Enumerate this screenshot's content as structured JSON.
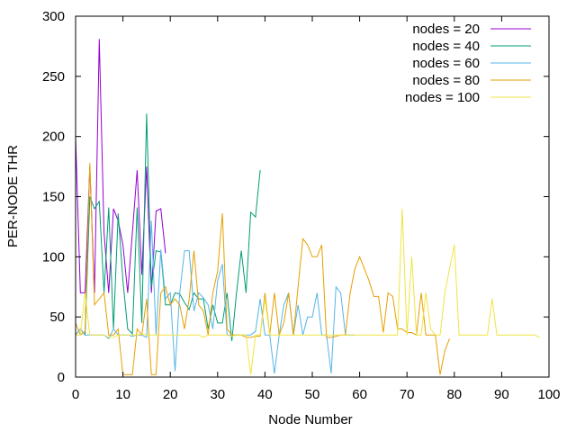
{
  "chart_data": {
    "type": "line",
    "xlabel": "Node Number",
    "ylabel": "PER-NODE THR",
    "xlim": [
      0,
      100
    ],
    "ylim": [
      0,
      300
    ],
    "xticks": [
      "0",
      "10",
      "20",
      "30",
      "40",
      "50",
      "60",
      "70",
      "80",
      "90",
      "100"
    ],
    "yticks": [
      "0",
      "50",
      "100",
      "150",
      "200",
      "250",
      "300"
    ],
    "grid": false,
    "legend_position": "top-right",
    "series": [
      {
        "name": "nodes = 20",
        "color": "#9400d3",
        "x": [
          0,
          1,
          2,
          3,
          4,
          5,
          6,
          7,
          8,
          9,
          10,
          11,
          12,
          13,
          14,
          15,
          16,
          17,
          18,
          19
        ],
        "y": [
          200,
          70,
          70,
          175,
          70,
          281,
          120,
          70,
          140,
          130,
          110,
          70,
          120,
          172,
          85,
          175,
          70,
          138,
          140,
          103
        ]
      },
      {
        "name": "nodes = 40",
        "color": "#009e73",
        "x": [
          0,
          1,
          2,
          3,
          4,
          5,
          6,
          7,
          8,
          9,
          10,
          11,
          12,
          13,
          14,
          15,
          16,
          17,
          18,
          19,
          20,
          21,
          22,
          23,
          24,
          25,
          26,
          27,
          28,
          29,
          30,
          31,
          32,
          33,
          34,
          35,
          36,
          37,
          38,
          39
        ],
        "y": [
          35,
          40,
          35,
          150,
          140,
          146,
          70,
          141,
          40,
          136,
          80,
          40,
          36,
          141,
          45,
          219,
          75,
          105,
          104,
          60,
          60,
          70,
          69,
          62,
          56,
          70,
          65,
          65,
          40,
          60,
          45,
          45,
          70,
          30,
          70,
          105,
          70,
          137,
          133,
          172
        ]
      },
      {
        "name": "nodes = 60",
        "color": "#56b4e9",
        "x": [
          0,
          1,
          2,
          3,
          4,
          5,
          6,
          7,
          8,
          9,
          10,
          11,
          12,
          13,
          14,
          15,
          16,
          17,
          18,
          19,
          20,
          21,
          22,
          23,
          24,
          25,
          26,
          27,
          28,
          29,
          30,
          31,
          32,
          33,
          34,
          35,
          36,
          37,
          38,
          39,
          40,
          41,
          42,
          43,
          44,
          45,
          46,
          47,
          48,
          49,
          50,
          51,
          52,
          53,
          54,
          55,
          56,
          57,
          58,
          59
        ],
        "y": [
          35,
          40,
          35,
          35,
          35,
          35,
          35,
          32,
          40,
          35,
          35,
          35,
          34,
          35,
          35,
          33,
          130,
          35,
          106,
          65,
          70,
          5,
          70,
          105,
          105,
          55,
          70,
          66,
          60,
          40,
          80,
          94,
          35,
          35,
          35,
          35,
          35,
          35,
          38,
          65,
          35,
          35,
          3,
          35,
          60,
          70,
          35,
          60,
          35,
          50,
          50,
          70,
          35,
          35,
          3,
          75,
          70,
          35,
          35,
          35
        ]
      },
      {
        "name": "nodes = 80",
        "color": "#e69f00",
        "x": [
          0,
          1,
          2,
          3,
          4,
          5,
          6,
          7,
          8,
          9,
          10,
          11,
          12,
          13,
          14,
          15,
          16,
          17,
          18,
          19,
          20,
          21,
          22,
          23,
          24,
          25,
          26,
          27,
          28,
          29,
          30,
          31,
          32,
          33,
          34,
          35,
          36,
          37,
          38,
          39,
          40,
          41,
          42,
          43,
          44,
          45,
          46,
          47,
          48,
          49,
          50,
          51,
          52,
          53,
          54,
          55,
          56,
          57,
          58,
          59,
          60,
          61,
          62,
          63,
          64,
          65,
          66,
          67,
          68,
          69,
          70,
          71,
          72,
          73,
          74,
          75,
          76,
          77,
          78,
          79
        ],
        "y": [
          45,
          35,
          38,
          178,
          60,
          65,
          70,
          35,
          35,
          40,
          2,
          2,
          2,
          40,
          35,
          65,
          2,
          2,
          70,
          75,
          60,
          65,
          60,
          40,
          65,
          105,
          60,
          55,
          35,
          70,
          88,
          136,
          40,
          35,
          35,
          35,
          33,
          33,
          34,
          34,
          70,
          35,
          70,
          35,
          45,
          70,
          35,
          75,
          115,
          110,
          100,
          100,
          110,
          33,
          33,
          34,
          35,
          35,
          70,
          90,
          100,
          90,
          80,
          67,
          67,
          37,
          70,
          67,
          40,
          40,
          37,
          37,
          35,
          70,
          35,
          35,
          35,
          2,
          22,
          32
        ]
      },
      {
        "name": "nodes = 100",
        "color": "#f0e442",
        "x": [
          0,
          1,
          2,
          3,
          4,
          5,
          6,
          7,
          8,
          9,
          10,
          11,
          12,
          13,
          14,
          15,
          16,
          17,
          18,
          19,
          20,
          21,
          22,
          23,
          24,
          25,
          26,
          27,
          28,
          29,
          30,
          31,
          32,
          33,
          34,
          35,
          36,
          37,
          38,
          39,
          40,
          41,
          42,
          43,
          44,
          45,
          46,
          47,
          48,
          49,
          50,
          51,
          52,
          53,
          54,
          55,
          56,
          57,
          58,
          59,
          60,
          61,
          62,
          63,
          64,
          65,
          66,
          67,
          68,
          69,
          70,
          71,
          72,
          73,
          74,
          75,
          76,
          77,
          78,
          79,
          80,
          81,
          82,
          83,
          84,
          85,
          86,
          87,
          88,
          89,
          90,
          91,
          92,
          93,
          94,
          95,
          96,
          97,
          98
        ],
        "y": [
          35,
          35,
          70,
          35,
          35,
          35,
          35,
          33,
          33,
          35,
          35,
          35,
          35,
          35,
          36,
          35,
          35,
          35,
          35,
          35,
          35,
          35,
          35,
          35,
          35,
          35,
          35,
          33,
          35,
          35,
          35,
          35,
          35,
          34,
          35,
          35,
          35,
          2,
          35,
          35,
          65,
          35,
          35,
          35,
          35,
          35,
          35,
          35,
          35,
          35,
          35,
          35,
          35,
          35,
          35,
          35,
          35,
          35,
          35,
          35,
          35,
          35,
          35,
          35,
          35,
          35,
          35,
          35,
          35,
          140,
          35,
          100,
          35,
          35,
          70,
          40,
          35,
          35,
          70,
          90,
          110,
          35,
          35,
          35,
          35,
          35,
          35,
          35,
          65,
          35,
          35,
          35,
          35,
          35,
          35,
          35,
          35,
          35,
          33
        ]
      }
    ]
  }
}
